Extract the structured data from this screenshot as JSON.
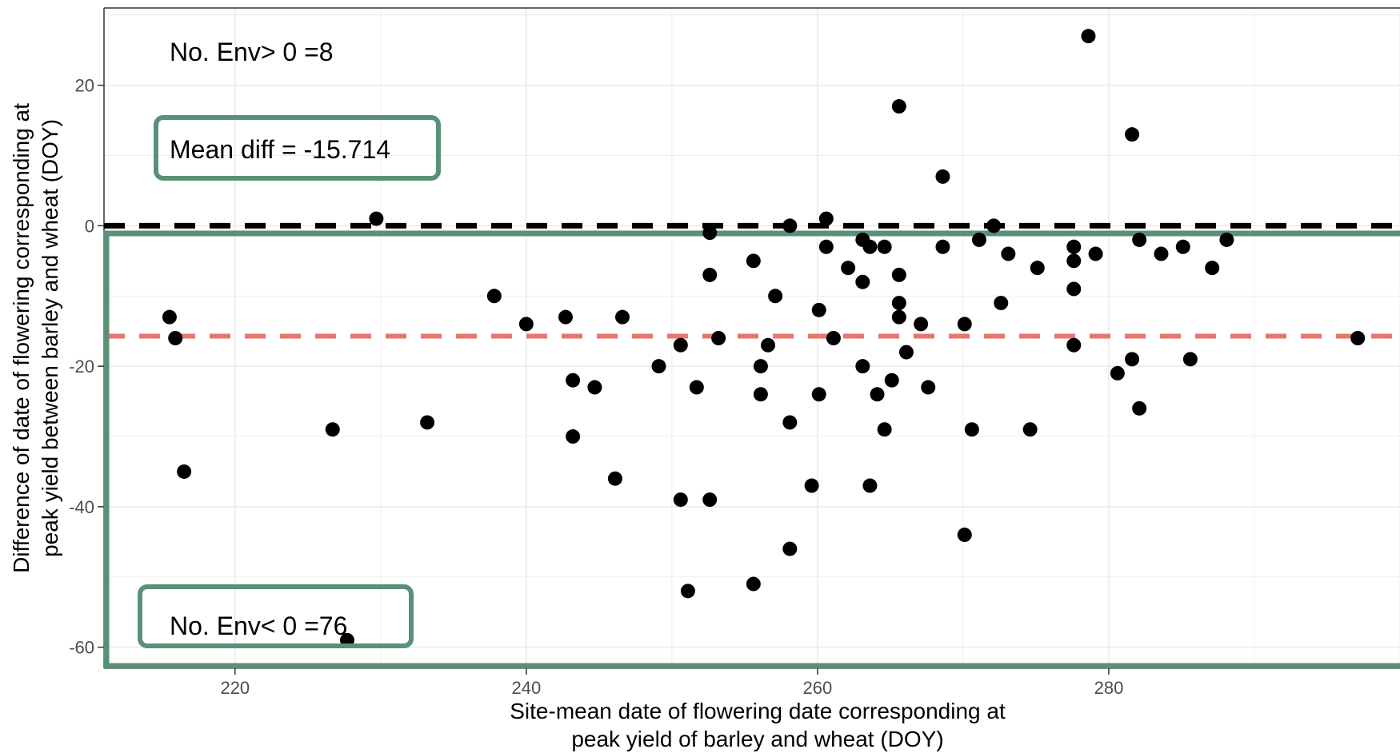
{
  "chart_data": {
    "type": "scatter",
    "xlabel": [
      "Site-mean date of flowering date corresponding at",
      "peak yield of barley and wheat (DOY)"
    ],
    "ylabel": [
      "Difference of date of flowering corresponding at",
      "peak yield between barley and wheat (DOY)"
    ],
    "xlim": [
      211,
      300
    ],
    "ylim": [
      -63,
      31
    ],
    "x_ticks": [
      220,
      240,
      260,
      280
    ],
    "y_ticks": [
      20,
      0,
      -20,
      -40,
      -60
    ],
    "grid": true,
    "annotations": {
      "env_above": "No. Env> 0 =8",
      "mean_diff": "Mean diff = -15.714",
      "env_below": "No. Env< 0 =76"
    },
    "reference_lines": {
      "zero": 0,
      "mean": -15.714
    },
    "colors": {
      "points": "#000000",
      "zero_line": "#000000",
      "mean_line": "#e8766d",
      "highlight_box": "#5a9176",
      "grid": "#ebebeb",
      "panel_border": "#333333"
    },
    "points": [
      [
        215.5,
        -13
      ],
      [
        215.9,
        -16
      ],
      [
        216.5,
        -35
      ],
      [
        226.7,
        -29
      ],
      [
        227.7,
        -59
      ],
      [
        229.7,
        1
      ],
      [
        233.2,
        -28
      ],
      [
        237.8,
        -10
      ],
      [
        240,
        -14
      ],
      [
        242.7,
        -13
      ],
      [
        243.2,
        -22
      ],
      [
        243.2,
        -30
      ],
      [
        244.7,
        -23
      ],
      [
        246.1,
        -36
      ],
      [
        246.6,
        -13
      ],
      [
        249.1,
        -20
      ],
      [
        250.6,
        -17
      ],
      [
        250.6,
        -39
      ],
      [
        251.1,
        -52
      ],
      [
        251.7,
        -23
      ],
      [
        252.6,
        -1
      ],
      [
        252.6,
        -7
      ],
      [
        252.6,
        -39
      ],
      [
        253.2,
        -16
      ],
      [
        255.6,
        -5
      ],
      [
        255.6,
        -51
      ],
      [
        256.1,
        -20
      ],
      [
        256.1,
        -24
      ],
      [
        256.6,
        -17
      ],
      [
        257.1,
        -10
      ],
      [
        258.1,
        0
      ],
      [
        258.1,
        -28
      ],
      [
        258.1,
        -46
      ],
      [
        259.6,
        -37
      ],
      [
        260.1,
        -12
      ],
      [
        260.1,
        -24
      ],
      [
        260.6,
        1
      ],
      [
        260.6,
        -3
      ],
      [
        261.1,
        -16
      ],
      [
        262.1,
        -6
      ],
      [
        263.1,
        -2
      ],
      [
        263.1,
        -8
      ],
      [
        263.1,
        -20
      ],
      [
        263.6,
        -3
      ],
      [
        263.6,
        -37
      ],
      [
        264.1,
        -24
      ],
      [
        264.6,
        -3
      ],
      [
        264.6,
        -29
      ],
      [
        265.1,
        -22
      ],
      [
        265.6,
        17
      ],
      [
        265.6,
        -7
      ],
      [
        265.6,
        -11
      ],
      [
        265.6,
        -13
      ],
      [
        266.1,
        -18
      ],
      [
        267.1,
        -14
      ],
      [
        267.6,
        -23
      ],
      [
        268.6,
        7
      ],
      [
        268.6,
        -3
      ],
      [
        270.1,
        -14
      ],
      [
        270.1,
        -44
      ],
      [
        270.6,
        -29
      ],
      [
        271.1,
        -2
      ],
      [
        272.1,
        0
      ],
      [
        272.6,
        -11
      ],
      [
        273.1,
        -4
      ],
      [
        274.6,
        -29
      ],
      [
        275.1,
        -6
      ],
      [
        277.6,
        -3
      ],
      [
        277.6,
        -5
      ],
      [
        277.6,
        -9
      ],
      [
        277.6,
        -17
      ],
      [
        278.6,
        27
      ],
      [
        279.1,
        -4
      ],
      [
        280.6,
        -21
      ],
      [
        281.6,
        13
      ],
      [
        281.6,
        -19
      ],
      [
        282.1,
        -2
      ],
      [
        282.1,
        -26
      ],
      [
        283.6,
        -4
      ],
      [
        285.1,
        -3
      ],
      [
        285.6,
        -19
      ],
      [
        287.1,
        -6
      ],
      [
        288.1,
        -2
      ],
      [
        297.1,
        -16
      ]
    ]
  }
}
